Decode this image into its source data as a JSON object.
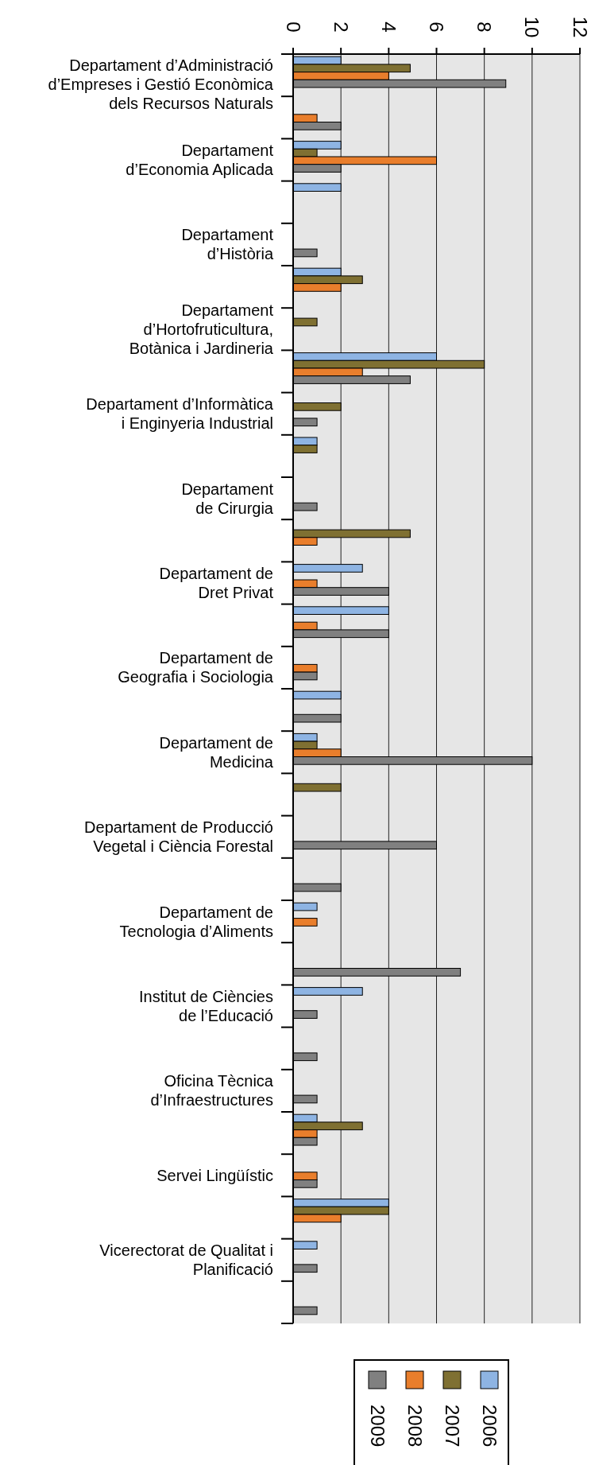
{
  "chart_data": {
    "type": "bar",
    "orientation": "horizontal",
    "categories": [
      "Departament d’Administració\nd’Empreses i Gestió Econòmica\ndels Recursos Naturals",
      null,
      "Departament\nd’Economia Aplicada",
      null,
      "Departament\nd’Història",
      null,
      "Departament\nd’Hortofruticultura,\nBotànica i Jardineria",
      null,
      "Departament d’Informàtica\ni Enginyeria Industrial",
      null,
      "Departament\nde Cirurgia",
      null,
      "Departament de\nDret Privat",
      null,
      "Departament de\nGeografia i Sociologia",
      null,
      "Departament de\nMedicina",
      null,
      "Departament de Producció\nVegetal i Ciència Forestal",
      null,
      "Departament de\nTecnologia d’Aliments",
      null,
      "Institut de Ciències\nde l’Educació",
      null,
      "Oficina Tècnica\nd’Infraestructures",
      null,
      "Servei Lingüístic",
      null,
      "Vicerectorat de Qualitat i\nPlanificació",
      null
    ],
    "series": [
      {
        "name": "2006",
        "color": "#8eb4e3",
        "values": [
          2,
          null,
          2,
          2,
          null,
          2,
          null,
          6,
          null,
          1,
          null,
          null,
          2.9,
          4,
          null,
          2,
          1,
          null,
          null,
          null,
          1,
          null,
          2.9,
          null,
          null,
          1,
          null,
          4,
          1,
          null
        ]
      },
      {
        "name": "2007",
        "color": "#7f7032",
        "values": [
          4.9,
          null,
          1,
          null,
          null,
          2.9,
          1,
          8,
          2,
          1,
          null,
          4.9,
          null,
          null,
          null,
          null,
          1,
          2,
          null,
          null,
          null,
          null,
          null,
          null,
          null,
          2.9,
          null,
          4,
          null,
          null
        ]
      },
      {
        "name": "2008",
        "color": "#e97e2c",
        "values": [
          4,
          1,
          6,
          null,
          null,
          2,
          null,
          2.9,
          null,
          null,
          null,
          1,
          1,
          1,
          1,
          null,
          2,
          null,
          null,
          null,
          1,
          null,
          null,
          null,
          null,
          1,
          1,
          2,
          null,
          null
        ]
      },
      {
        "name": "2009",
        "color": "#808080",
        "values": [
          8.9,
          2,
          2,
          null,
          1,
          null,
          null,
          4.9,
          1,
          null,
          1,
          null,
          4,
          4,
          1,
          2,
          10,
          null,
          6,
          2,
          null,
          7,
          1,
          1,
          1,
          1,
          1,
          null,
          1,
          1
        ]
      }
    ],
    "xlim": [
      0,
      12
    ],
    "xticks": [
      0,
      2,
      4,
      6,
      8,
      10,
      12
    ],
    "grid": "x",
    "legend": "bottom"
  }
}
